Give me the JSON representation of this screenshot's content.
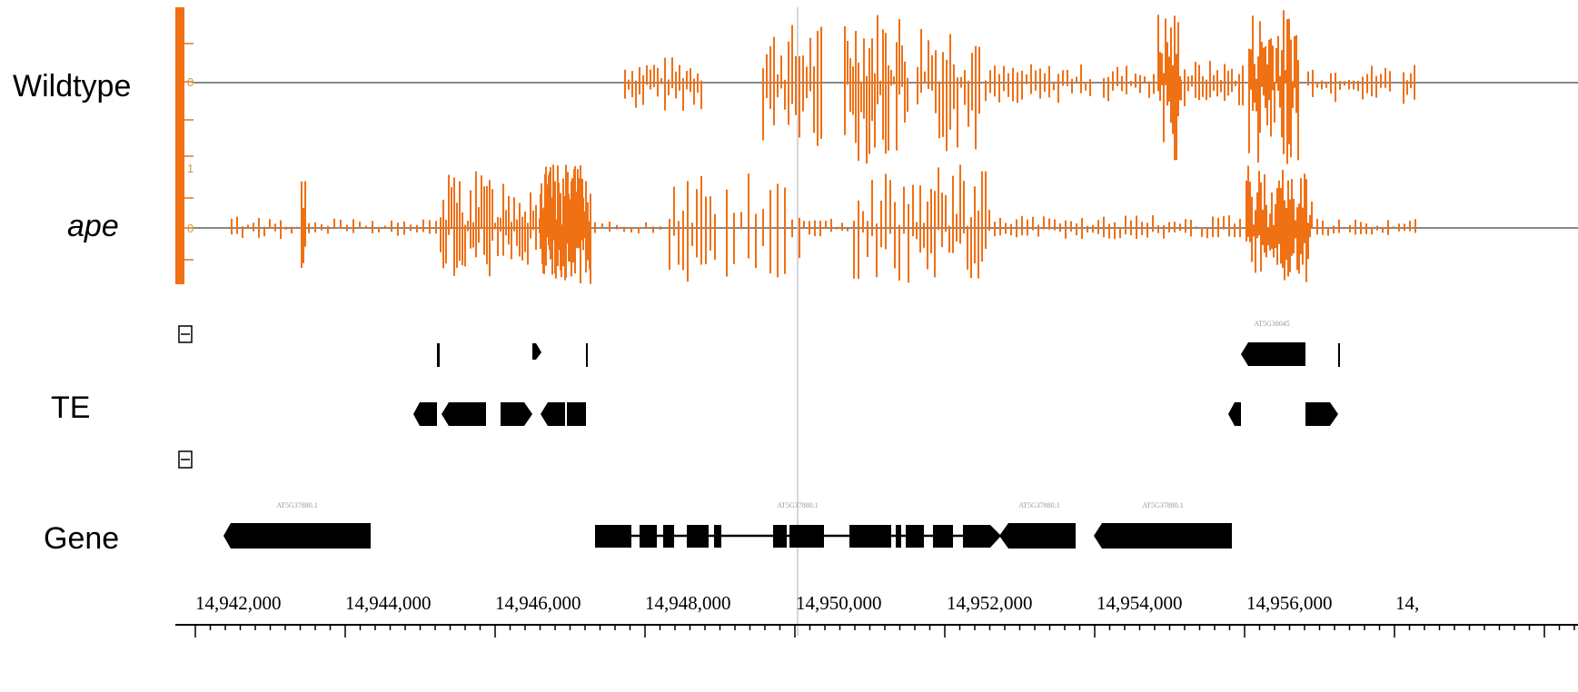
{
  "colors": {
    "signal": "#f07014",
    "baseline": "#888888",
    "feature": "#000000",
    "crosshair": "#c8c8c8"
  },
  "tracks": {
    "wildtype_label": "Wildtype",
    "ape_label": "ape",
    "te_label": "TE",
    "gene_label": "Gene",
    "wildtype_zero": "0",
    "ape_zero": "0",
    "ape_upper": "1"
  },
  "collapse_icon": "collapse-square-icon",
  "te_features": {
    "label": "AT5G38045"
  },
  "gene_features": {
    "labels": [
      "AT5G37880.1",
      "AT5G37880.1",
      "AT5G37880.1",
      "AT5G37880.1"
    ]
  },
  "ruler": {
    "tick_labels": [
      "14,942,000",
      "14,944,000",
      "14,946,000",
      "14,948,000",
      "14,950,000",
      "14,952,000",
      "14,954,000",
      "14,956,000",
      "14,"
    ]
  }
}
